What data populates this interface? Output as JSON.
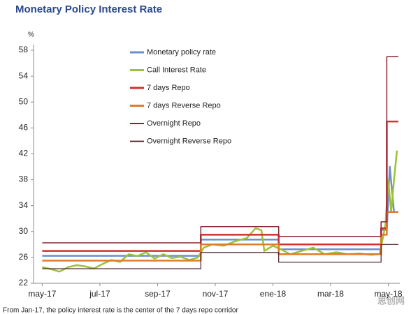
{
  "chart_data": {
    "type": "line",
    "title": "Monetary Policy Interest Rate",
    "y_unit": "%",
    "footnote": "From Jan-17, the policy interest rate is the center of the 7 days repo corridor",
    "watermark": "思创网",
    "xlim": [
      -0.3,
      12.4
    ],
    "xticks": [
      {
        "value": 0,
        "label": "may-17"
      },
      {
        "value": 2,
        "label": "jul-17"
      },
      {
        "value": 4,
        "label": "sep-17"
      },
      {
        "value": 6,
        "label": "nov-17"
      },
      {
        "value": 8,
        "label": "ene-18"
      },
      {
        "value": 10,
        "label": "mar-18"
      },
      {
        "value": 12,
        "label": "may-18"
      }
    ],
    "ylim": [
      22,
      58
    ],
    "yticks": [
      22,
      26,
      30,
      34,
      38,
      42,
      46,
      50,
      54,
      58
    ],
    "legend": "upper center",
    "series": [
      {
        "name": "Monetary policy rate",
        "color": "#6a8fd0",
        "width": 2.5,
        "x": [
          0,
          5.5,
          5.5,
          8.2,
          8.2,
          11.75,
          11.75,
          11.95,
          12.05,
          12.2
        ],
        "values": [
          26.25,
          26.25,
          28.75,
          28.75,
          27.25,
          27.25,
          30.25,
          30.25,
          40,
          33
        ]
      },
      {
        "name": "Call Interest Rate",
        "color": "#9dc13a",
        "width": 2.5,
        "x": [
          0,
          0.3,
          0.6,
          0.9,
          1.2,
          1.5,
          1.8,
          2.1,
          2.4,
          2.7,
          3.0,
          3.3,
          3.6,
          3.9,
          4.2,
          4.5,
          4.8,
          5.1,
          5.4,
          5.6,
          5.9,
          6.3,
          6.7,
          7.1,
          7.4,
          7.6,
          7.7,
          8.0,
          8.3,
          8.6,
          9.0,
          9.4,
          9.8,
          10.2,
          10.6,
          11.0,
          11.4,
          11.7,
          11.9,
          12.0,
          12.1,
          12.2,
          12.3
        ],
        "values": [
          24.5,
          24.2,
          23.8,
          24.5,
          24.8,
          24.6,
          24.3,
          25,
          25.6,
          25.3,
          26.5,
          26.2,
          26.8,
          25.8,
          26.5,
          25.9,
          26.1,
          25.6,
          26,
          27.5,
          28,
          27.8,
          28.5,
          29,
          30.5,
          30.2,
          27,
          27.8,
          27.2,
          26.5,
          27,
          27.5,
          26.5,
          26.8,
          26.5,
          26.6,
          26.4,
          26.5,
          31,
          38,
          33,
          38,
          42.5
        ]
      },
      {
        "name": "7 days Repo",
        "color": "#d4322c",
        "width": 2.5,
        "x": [
          0,
          5.5,
          5.5,
          8.2,
          8.2,
          11.75,
          11.75,
          11.95,
          11.95,
          12.35
        ],
        "values": [
          27,
          27,
          29.5,
          29.5,
          28,
          28,
          30.5,
          30.5,
          47,
          47
        ]
      },
      {
        "name": "7 days Reverse Repo",
        "color": "#e07b2a",
        "width": 2.5,
        "x": [
          0,
          5.5,
          5.5,
          8.2,
          8.2,
          11.75,
          11.75,
          11.95,
          11.95,
          12.35
        ],
        "values": [
          25.5,
          25.5,
          28,
          28,
          26.5,
          26.5,
          29.5,
          29.5,
          33,
          33
        ]
      },
      {
        "name": "Overnight Repo",
        "color": "#8b2332",
        "width": 1.5,
        "x": [
          0,
          5.5,
          5.5,
          8.2,
          8.2,
          11.75,
          11.75,
          11.95,
          11.95,
          12.35
        ],
        "values": [
          28.25,
          28.25,
          30.75,
          30.75,
          29.25,
          29.25,
          31.5,
          31.5,
          57,
          57
        ]
      },
      {
        "name": "Overnight Reverse Repo",
        "color": "#4a1a24",
        "width": 1.2,
        "x": [
          0,
          5.5,
          5.5,
          8.2,
          8.2,
          11.75,
          11.75,
          11.95,
          11.95,
          12.35
        ],
        "values": [
          24.25,
          24.25,
          26.75,
          26.75,
          25.25,
          25.25,
          28,
          28,
          28,
          28
        ]
      }
    ]
  }
}
